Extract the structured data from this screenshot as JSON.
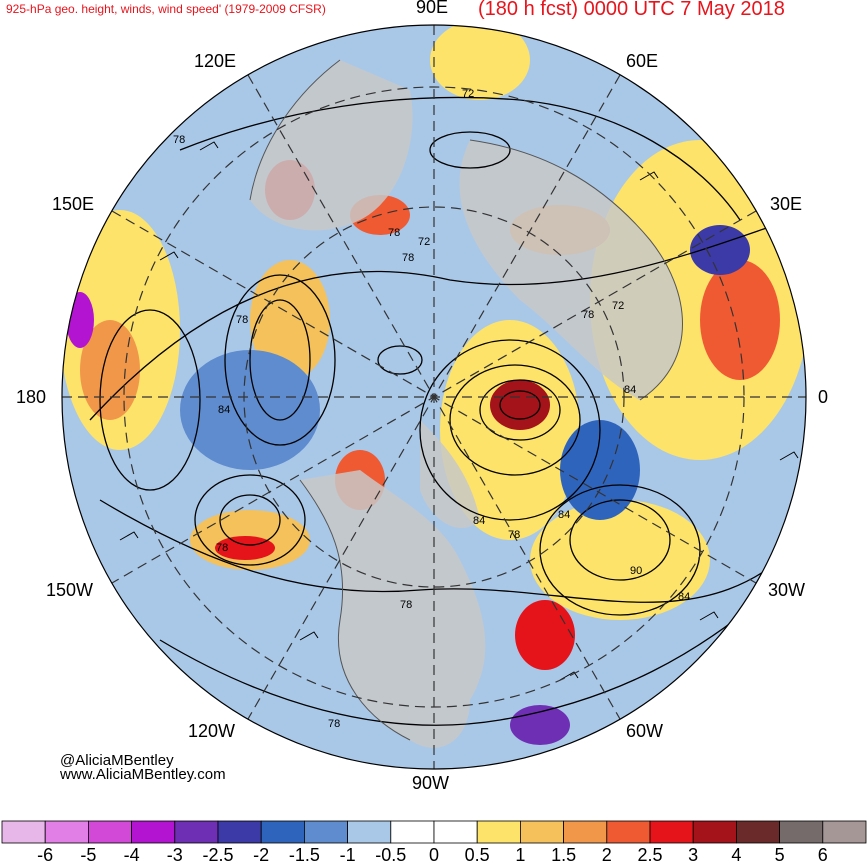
{
  "title": {
    "left": "925-hPa geo. height, winds, wind speed' (1979-2009 CFSR)",
    "right": "(180 h fcst) 0000 UTC 7 May 2018"
  },
  "longitude_labels": {
    "lon_90e": "90E",
    "lon_120e": "120E",
    "lon_60e": "60E",
    "lon_150e": "150E",
    "lon_30e": "30E",
    "lon_180": "180",
    "lon_0": "0",
    "lon_150w": "150W",
    "lon_30w": "30W",
    "lon_120w": "120W",
    "lon_60w": "60W",
    "lon_90w": "90W"
  },
  "contour_labels": [
    "72",
    "78",
    "78",
    "72",
    "78",
    "78",
    "72",
    "84",
    "84",
    "78",
    "84",
    "78",
    "84",
    "90",
    "84",
    "78",
    "78",
    "78"
  ],
  "credits": {
    "handle": "@AliciaMBentley",
    "website": "www.AliciaMBentley.com"
  },
  "colorbar": {
    "labels": [
      "-6",
      "-5",
      "-4",
      "-3",
      "-2.5",
      "-2",
      "-1.5",
      "-1",
      "-0.5",
      "0",
      "0.5",
      "1",
      "1.5",
      "2",
      "2.5",
      "3",
      "4",
      "5",
      "6"
    ],
    "colors": [
      "#e7b7e9",
      "#e27fe6",
      "#d249d8",
      "#b314d1",
      "#6e2fb4",
      "#3b3aa6",
      "#2f64bd",
      "#5f8cce",
      "#a9c8e8",
      "#ffffff",
      "#ffffff",
      "#fde36a",
      "#f4c15a",
      "#f1974a",
      "#ef5a32",
      "#e4141a",
      "#a4121a",
      "#6b2a2a",
      "#756b6b",
      "#a69797"
    ]
  },
  "colors": {
    "title": "#e8141c",
    "land": "#c8c8c8",
    "contour": "#000000"
  }
}
